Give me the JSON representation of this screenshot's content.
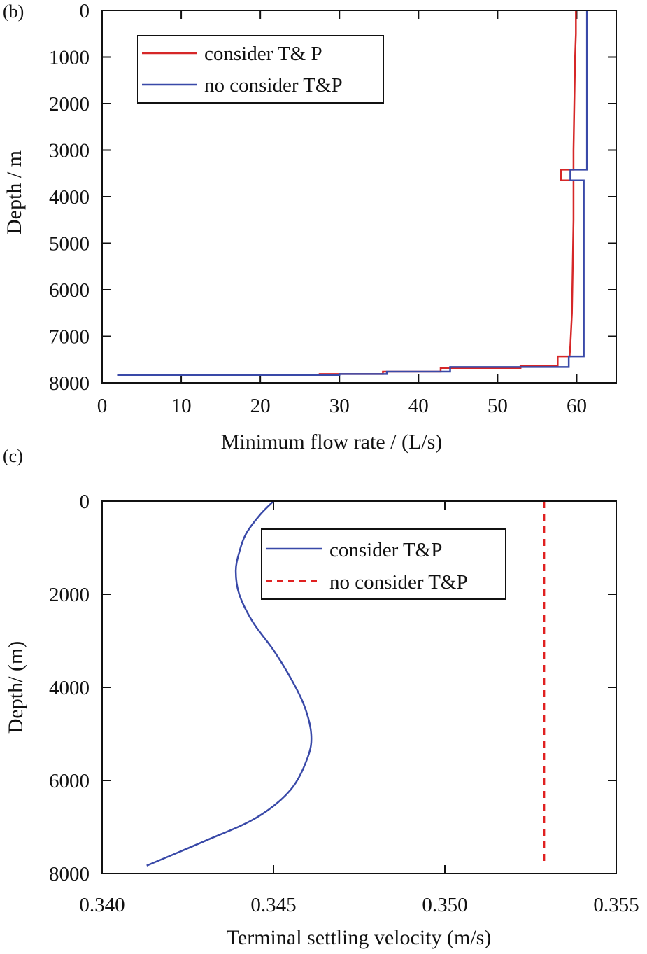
{
  "chart_data": [
    {
      "panel": "(b)",
      "type": "line",
      "orientation": "depth-vertical",
      "xlabel": "Minimum flow rate / (L/s)",
      "ylabel": "Depth / m",
      "xlim": [
        0,
        65
      ],
      "ylim": [
        8000,
        0
      ],
      "y_inverted": true,
      "xticks": [
        0,
        10,
        20,
        30,
        40,
        50,
        60
      ],
      "yticks": [
        0,
        1000,
        2000,
        3000,
        4000,
        5000,
        6000,
        7000,
        8000
      ],
      "legend": {
        "placement": "top-left"
      },
      "series": [
        {
          "name": "consider T& P",
          "color": "#d62728",
          "style": "solid",
          "points": [
            {
              "x": 59.9,
              "y": 0
            },
            {
              "x": 59.9,
              "y": 500
            },
            {
              "x": 59.8,
              "y": 1000
            },
            {
              "x": 59.7,
              "y": 2000
            },
            {
              "x": 59.6,
              "y": 3000
            },
            {
              "x": 59.6,
              "y": 3420
            },
            {
              "x": 58.0,
              "y": 3420
            },
            {
              "x": 58.0,
              "y": 3650
            },
            {
              "x": 59.6,
              "y": 3650
            },
            {
              "x": 59.6,
              "y": 4500
            },
            {
              "x": 59.5,
              "y": 5500
            },
            {
              "x": 59.4,
              "y": 6500
            },
            {
              "x": 59.2,
              "y": 7200
            },
            {
              "x": 59.1,
              "y": 7430
            },
            {
              "x": 57.6,
              "y": 7430
            },
            {
              "x": 57.6,
              "y": 7640
            },
            {
              "x": 52.9,
              "y": 7640
            },
            {
              "x": 52.9,
              "y": 7680
            },
            {
              "x": 42.8,
              "y": 7680
            },
            {
              "x": 42.8,
              "y": 7760
            },
            {
              "x": 35.5,
              "y": 7760
            },
            {
              "x": 35.5,
              "y": 7810
            },
            {
              "x": 27.5,
              "y": 7810
            },
            {
              "x": 27.5,
              "y": 7830
            },
            {
              "x": 1.9,
              "y": 7830
            }
          ]
        },
        {
          "name": "no consider T&P",
          "color": "#3949a8",
          "style": "solid",
          "points": [
            {
              "x": 61.3,
              "y": 0
            },
            {
              "x": 61.3,
              "y": 3420
            },
            {
              "x": 59.2,
              "y": 3420
            },
            {
              "x": 59.2,
              "y": 3650
            },
            {
              "x": 60.9,
              "y": 3650
            },
            {
              "x": 60.9,
              "y": 7430
            },
            {
              "x": 59.0,
              "y": 7430
            },
            {
              "x": 59.0,
              "y": 7660
            },
            {
              "x": 44.0,
              "y": 7660
            },
            {
              "x": 44.0,
              "y": 7760
            },
            {
              "x": 36.0,
              "y": 7760
            },
            {
              "x": 36.0,
              "y": 7810
            },
            {
              "x": 30.0,
              "y": 7810
            },
            {
              "x": 30.0,
              "y": 7830
            },
            {
              "x": 1.9,
              "y": 7830
            }
          ]
        }
      ]
    },
    {
      "panel": "(c)",
      "type": "line",
      "orientation": "depth-vertical",
      "xlabel": "Terminal settling velocity (m/s)",
      "ylabel": "Depth/ (m)",
      "xlim": [
        0.34,
        0.355
      ],
      "ylim": [
        8000,
        0
      ],
      "y_inverted": true,
      "xticks": [
        0.34,
        0.345,
        0.35,
        0.355
      ],
      "xtick_labels": [
        "0.340",
        "0.345",
        "0.350",
        "0.355"
      ],
      "yticks": [
        0,
        2000,
        4000,
        6000,
        8000
      ],
      "legend": {
        "placement": "top-right"
      },
      "series": [
        {
          "name": "consider T&P",
          "color": "#3949a8",
          "style": "solid",
          "points": [
            {
              "x": 0.345,
              "y": 0
            },
            {
              "x": 0.3446,
              "y": 300
            },
            {
              "x": 0.3442,
              "y": 700
            },
            {
              "x": 0.344,
              "y": 1100
            },
            {
              "x": 0.3439,
              "y": 1500
            },
            {
              "x": 0.344,
              "y": 2000
            },
            {
              "x": 0.3444,
              "y": 2600
            },
            {
              "x": 0.345,
              "y": 3200
            },
            {
              "x": 0.3455,
              "y": 3800
            },
            {
              "x": 0.3459,
              "y": 4400
            },
            {
              "x": 0.3461,
              "y": 5000
            },
            {
              "x": 0.346,
              "y": 5500
            },
            {
              "x": 0.3455,
              "y": 6200
            },
            {
              "x": 0.3445,
              "y": 6800
            },
            {
              "x": 0.343,
              "y": 7300
            },
            {
              "x": 0.3413,
              "y": 7830
            }
          ]
        },
        {
          "name": "no consider T&P",
          "color": "#e02020",
          "style": "dashed",
          "points": [
            {
              "x": 0.3529,
              "y": 0
            },
            {
              "x": 0.3529,
              "y": 7830
            }
          ]
        }
      ]
    }
  ]
}
